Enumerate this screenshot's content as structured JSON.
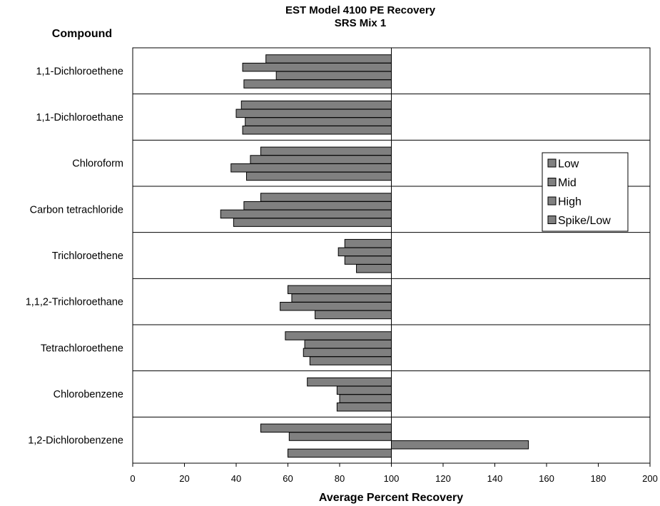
{
  "chart_data": {
    "type": "bar",
    "orientation": "horizontal",
    "title": "EST Model 4100  PE Recovery",
    "subtitle": "SRS  Mix 1",
    "category_header": "Compound",
    "xlabel": "Average Percent Recovery",
    "ylabel": "",
    "xlim": [
      0,
      200
    ],
    "xticks": [
      0,
      20,
      40,
      60,
      80,
      100,
      120,
      140,
      160,
      180,
      200
    ],
    "bar_origin": 100,
    "grid": false,
    "legend_position": "right",
    "bar_color": "#808080",
    "categories": [
      "1,1-Dichloroethene",
      "1,1-Dichloroethane",
      "Chloroform",
      "Carbon tetrachloride",
      "Trichloroethene",
      "1,1,2-Trichloroethane",
      "Tetrachloroethene",
      "Chlorobenzene",
      "1,2-Dichlorobenzene"
    ],
    "series": [
      {
        "name": "Low",
        "values": [
          51.5,
          42.0,
          49.5,
          49.5,
          82.0,
          60.0,
          59.0,
          67.5,
          49.5
        ]
      },
      {
        "name": "Mid",
        "values": [
          42.5,
          40.0,
          45.5,
          43.0,
          79.5,
          61.5,
          66.5,
          79.0,
          60.5
        ]
      },
      {
        "name": "High",
        "values": [
          55.5,
          43.5,
          38.0,
          34.0,
          82.0,
          57.0,
          66.0,
          80.0,
          153.0
        ]
      },
      {
        "name": "Spike/Low",
        "values": [
          43.0,
          42.5,
          44.0,
          39.0,
          86.5,
          70.5,
          68.5,
          79.0,
          60.0
        ]
      }
    ]
  }
}
